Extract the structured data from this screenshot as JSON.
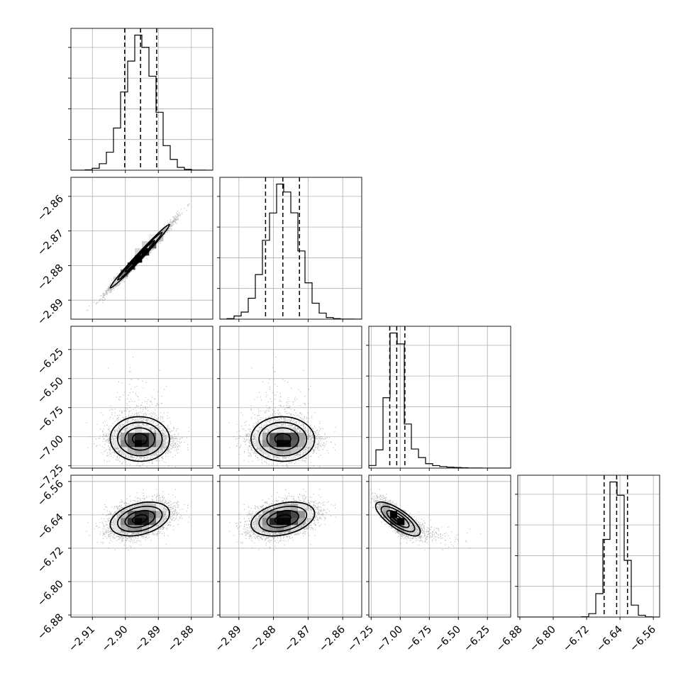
{
  "chart_data": {
    "type": "corner",
    "title": "",
    "grid": true,
    "histogram_bins": 20,
    "contour_levels": [
      0.5,
      0.75,
      0.9,
      0.97
    ],
    "colors": {
      "line": "#000000",
      "points": "#333333",
      "grid": "#b0b0b0",
      "background": "#ffffff"
    },
    "parameters": [
      {
        "name": "",
        "mean": -2.8955,
        "sd": 0.0045,
        "range": [
          -2.9165,
          -2.8735
        ],
        "ticks": [
          -2.91,
          -2.9,
          -2.89,
          -2.88
        ],
        "tick_labels": [
          "−2.91",
          "−2.90",
          "−2.89",
          "−2.88"
        ],
        "quantiles": [
          -2.9002,
          -2.8954,
          -2.8905
        ]
      },
      {
        "name": "",
        "mean": -2.8772,
        "sd": 0.0046,
        "range": [
          -2.8955,
          -2.8545
        ],
        "ticks": [
          -2.89,
          -2.88,
          -2.87,
          -2.86
        ],
        "tick_labels": [
          "−2.89",
          "−2.88",
          "−2.87",
          "−2.86"
        ],
        "quantiles": [
          -2.8823,
          -2.8773,
          -2.8725
        ]
      },
      {
        "name": "",
        "mean": -7.03,
        "sd": 0.07,
        "range": [
          -7.27,
          -6.05
        ],
        "ticks": [
          -7.25,
          -7.0,
          -6.75,
          -6.5,
          -6.25
        ],
        "tick_labels": [
          "−7.25",
          "−7.00",
          "−6.75",
          "−6.50",
          "−6.25"
        ],
        "quantiles": [
          -7.09,
          -7.03,
          -6.96
        ]
      },
      {
        "name": "",
        "mean": -6.65,
        "sd": 0.02,
        "range": [
          -6.885,
          -6.545
        ],
        "ticks": [
          -6.88,
          -6.8,
          -6.72,
          -6.64,
          -6.56
        ],
        "tick_labels": [
          "−6.88",
          "−6.80",
          "−6.72",
          "−6.64",
          "−6.56"
        ],
        "quantiles": [
          -6.678,
          -6.648,
          -6.622
        ]
      }
    ],
    "correlations": [
      [
        1.0,
        0.99,
        0.0,
        0.33
      ],
      [
        0.99,
        1.0,
        0.0,
        0.32
      ],
      [
        0.0,
        0.0,
        1.0,
        -0.8
      ],
      [
        0.33,
        0.32,
        -0.8,
        1.0
      ]
    ]
  }
}
